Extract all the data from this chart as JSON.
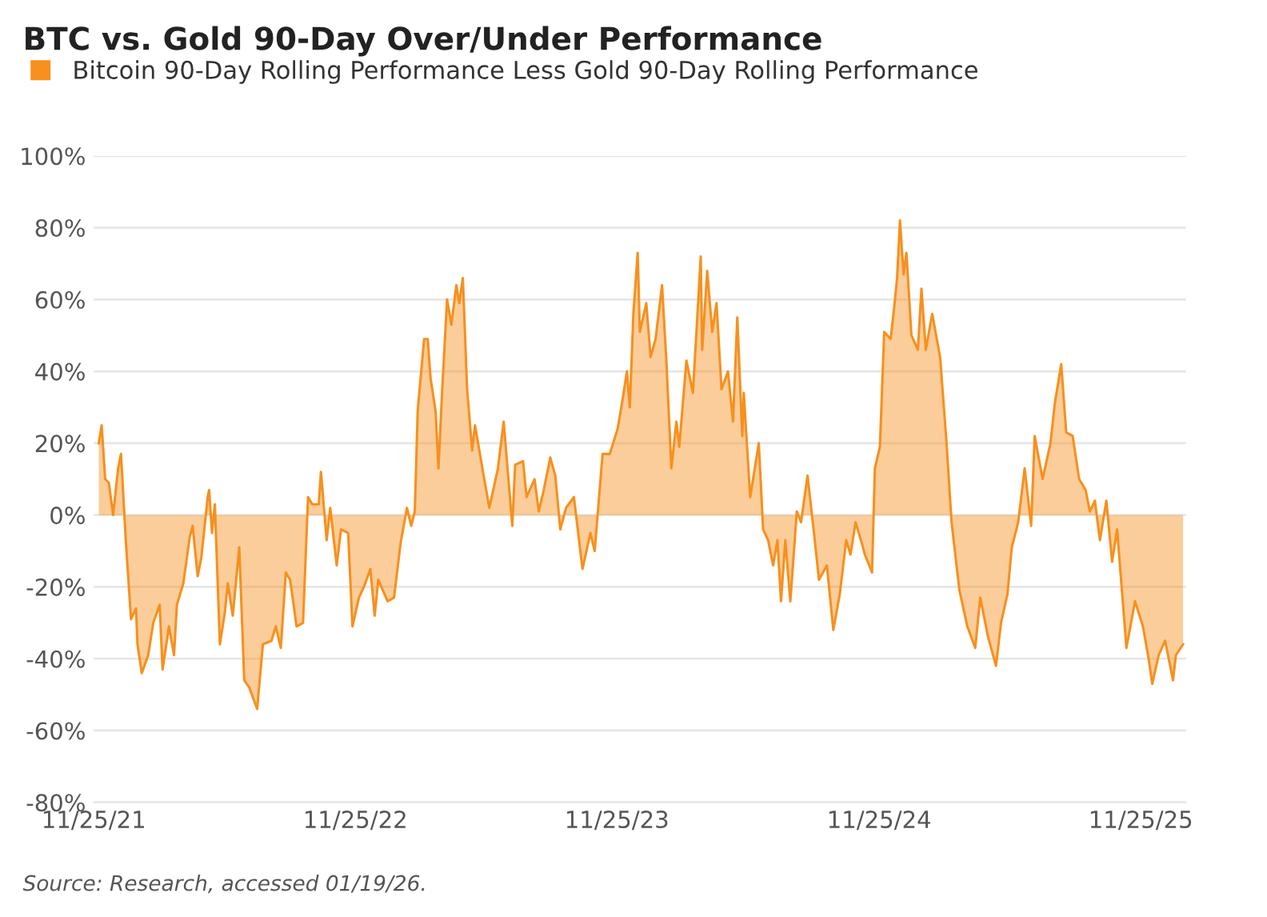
{
  "chart_data": {
    "type": "area",
    "title": "BTC vs. Gold 90-Day Over/Under Performance",
    "annotations": [
      "Source: Research, accessed 01/19/26."
    ],
    "legend": "top left",
    "grid": "y",
    "xlim": [
      "2021-11-25",
      "2026-01-27"
    ],
    "xticks": [
      {
        "value": "2021-11-25",
        "label": "11/25/21"
      },
      {
        "value": "2022-11-25",
        "label": "11/25/22"
      },
      {
        "value": "2023-11-25",
        "label": "11/25/23"
      },
      {
        "value": "2024-11-25",
        "label": "11/25/24"
      },
      {
        "value": "2025-11-25",
        "label": "11/25/25"
      }
    ],
    "ylim": [
      -80,
      100
    ],
    "yticks": [
      {
        "value": -80,
        "label": "-80%"
      },
      {
        "value": -60,
        "label": "-60%"
      },
      {
        "value": -40,
        "label": "-40%"
      },
      {
        "value": -20,
        "label": "-20%"
      },
      {
        "value": 0,
        "label": "0%"
      },
      {
        "value": 20,
        "label": "20%"
      },
      {
        "value": 40,
        "label": "40%"
      },
      {
        "value": 60,
        "label": "60%"
      },
      {
        "value": 80,
        "label": "80%"
      },
      {
        "value": 100,
        "label": "100%"
      }
    ],
    "series": [
      {
        "name": "Bitcoin 90-Day Rolling Performance Less Gold 90-Day Rolling Performance",
        "color": "#f7901e",
        "x": [
          "2021-12-02",
          "2021-12-06",
          "2021-12-11",
          "2021-12-16",
          "2021-12-22",
          "2021-12-29",
          "2022-01-02",
          "2022-01-09",
          "2022-01-16",
          "2022-01-23",
          "2022-01-25",
          "2022-01-31",
          "2022-02-09",
          "2022-02-16",
          "2022-02-25",
          "2022-03-01",
          "2022-03-10",
          "2022-03-17",
          "2022-03-21",
          "2022-03-30",
          "2022-04-08",
          "2022-04-12",
          "2022-04-19",
          "2022-04-24",
          "2022-05-03",
          "2022-05-05",
          "2022-05-09",
          "2022-05-13",
          "2022-05-20",
          "2022-05-27",
          "2022-05-31",
          "2022-06-07",
          "2022-06-16",
          "2022-06-23",
          "2022-06-30",
          "2022-07-11",
          "2022-07-19",
          "2022-07-31",
          "2022-08-06",
          "2022-08-13",
          "2022-08-20",
          "2022-08-26",
          "2022-09-04",
          "2022-09-13",
          "2022-09-20",
          "2022-09-26",
          "2022-10-05",
          "2022-10-08",
          "2022-10-16",
          "2022-10-21",
          "2022-10-30",
          "2022-11-05",
          "2022-11-15",
          "2022-11-21",
          "2022-11-30",
          "2022-12-07",
          "2022-12-16",
          "2022-12-22",
          "2022-12-27",
          "2023-01-09",
          "2023-01-18",
          "2023-01-27",
          "2023-02-05",
          "2023-02-11",
          "2023-02-16",
          "2023-02-20",
          "2023-03-01",
          "2023-03-06",
          "2023-03-10",
          "2023-03-17",
          "2023-03-21",
          "2023-03-26",
          "2023-04-02",
          "2023-04-08",
          "2023-04-15",
          "2023-04-19",
          "2023-04-24",
          "2023-04-30",
          "2023-05-07",
          "2023-05-11",
          "2023-05-23",
          "2023-05-31",
          "2023-06-12",
          "2023-06-20",
          "2023-07-02",
          "2023-07-06",
          "2023-07-17",
          "2023-07-22",
          "2023-08-02",
          "2023-08-08",
          "2023-08-15",
          "2023-08-24",
          "2023-08-31",
          "2023-09-07",
          "2023-09-15",
          "2023-09-26",
          "2023-10-08",
          "2023-10-19",
          "2023-10-25",
          "2023-11-05",
          "2023-11-15",
          "2023-11-26",
          "2023-12-02",
          "2023-12-09",
          "2023-12-13",
          "2023-12-18",
          "2023-12-24",
          "2023-12-27",
          "2024-01-05",
          "2024-01-11",
          "2024-01-18",
          "2024-01-27",
          "2024-02-02",
          "2024-02-09",
          "2024-02-16",
          "2024-02-20",
          "2024-03-01",
          "2024-03-10",
          "2024-03-15",
          "2024-03-21",
          "2024-03-23",
          "2024-03-30",
          "2024-04-06",
          "2024-04-12",
          "2024-04-19",
          "2024-04-28",
          "2024-05-05",
          "2024-05-11",
          "2024-05-18",
          "2024-05-20",
          "2024-05-29",
          "2024-06-10",
          "2024-06-16",
          "2024-06-23",
          "2024-06-30",
          "2024-07-06",
          "2024-07-11",
          "2024-07-17",
          "2024-07-24",
          "2024-08-02",
          "2024-08-08",
          "2024-08-17",
          "2024-08-26",
          "2024-09-02",
          "2024-09-13",
          "2024-09-22",
          "2024-10-01",
          "2024-10-10",
          "2024-10-16",
          "2024-10-23",
          "2024-11-01",
          "2024-11-05",
          "2024-11-15",
          "2024-11-19",
          "2024-11-26",
          "2024-12-02",
          "2024-12-11",
          "2024-12-16",
          "2024-12-20",
          "2024-12-24",
          "2024-12-29",
          "2025-01-02",
          "2025-01-09",
          "2025-01-18",
          "2025-01-23",
          "2025-01-29",
          "2025-02-07",
          "2025-02-18",
          "2025-02-27",
          "2025-03-06",
          "2025-03-17",
          "2025-03-28",
          "2025-04-08",
          "2025-04-15",
          "2025-04-26",
          "2025-05-07",
          "2025-05-14",
          "2025-05-23",
          "2025-05-29",
          "2025-06-07",
          "2025-06-16",
          "2025-06-25",
          "2025-06-30",
          "2025-07-11",
          "2025-07-22",
          "2025-07-28",
          "2025-08-06",
          "2025-08-13",
          "2025-08-22",
          "2025-08-31",
          "2025-09-09",
          "2025-09-15",
          "2025-09-22",
          "2025-09-29",
          "2025-10-08",
          "2025-10-16",
          "2025-10-23",
          "2025-11-05",
          "2025-11-17",
          "2025-11-28",
          "2025-12-06",
          "2025-12-11",
          "2025-12-20",
          "2025-12-29",
          "2026-01-09",
          "2026-01-13",
          "2026-01-23"
        ],
        "values": [
          20,
          25,
          10,
          9,
          0,
          13,
          17,
          -8,
          -29,
          -26,
          -36,
          -44,
          -39,
          -30,
          -25,
          -43,
          -31,
          -39,
          -25,
          -19,
          -6,
          -3,
          -17,
          -12,
          5,
          7,
          -5,
          3,
          -36,
          -27,
          -19,
          -28,
          -9,
          -46,
          -48,
          -54,
          -36,
          -35,
          -31,
          -37,
          -16,
          -18,
          -31,
          -30,
          5,
          3,
          3,
          12,
          -7,
          2,
          -14,
          -4,
          -5,
          -31,
          -23,
          -20,
          -15,
          -28,
          -18,
          -24,
          -23,
          -8,
          2,
          -3,
          1,
          29,
          49,
          49,
          38,
          29,
          13,
          34,
          60,
          53,
          64,
          59,
          66,
          35,
          18,
          25,
          11,
          2,
          13,
          26,
          -3,
          14,
          15,
          5,
          10,
          1,
          7,
          16,
          11,
          -4,
          2,
          5,
          -15,
          -5,
          -10,
          17,
          17,
          24,
          31,
          40,
          30,
          56,
          73,
          51,
          59,
          44,
          49,
          64,
          43,
          13,
          26,
          19,
          43,
          34,
          51,
          72,
          46,
          68,
          51,
          59,
          35,
          40,
          26,
          55,
          22,
          34,
          5,
          20,
          -4,
          -7,
          -14,
          -7,
          -24,
          -7,
          -24,
          1,
          -2,
          11,
          -5,
          -18,
          -14,
          -32,
          -22,
          -7,
          -11,
          -2,
          -8,
          -11,
          -16,
          13,
          19,
          51,
          49,
          58,
          66,
          82,
          67,
          73,
          50,
          46,
          63,
          46,
          56,
          44,
          20,
          -2,
          -21,
          -31,
          -37,
          -23,
          -34,
          -42,
          -30,
          -22,
          -9,
          -2,
          13,
          -3,
          22,
          10,
          20,
          31,
          42,
          23,
          22,
          10,
          7,
          1,
          4,
          -7,
          4,
          -13,
          -4,
          -37,
          -24,
          -31,
          -40,
          -47,
          -39,
          -35,
          -46,
          -39,
          -36
        ]
      }
    ]
  }
}
